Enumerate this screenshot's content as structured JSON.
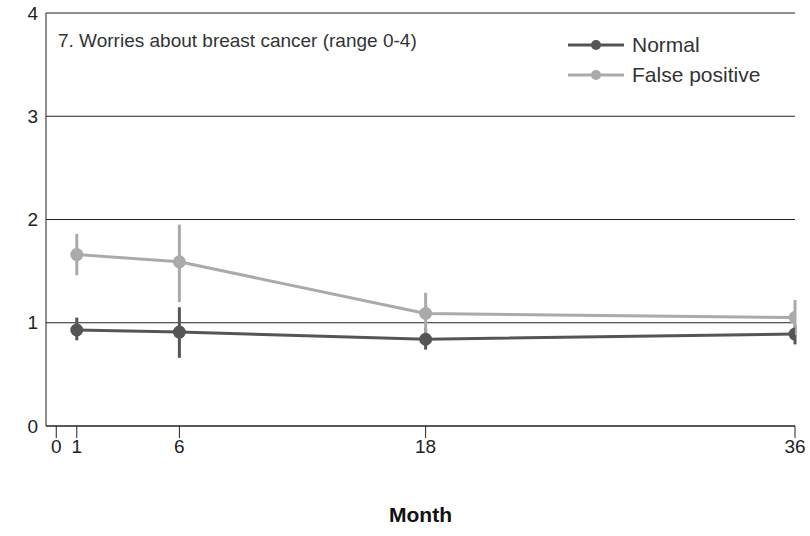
{
  "chart_data": {
    "type": "line",
    "title": "7. Worries about breast cancer (range 0-4)",
    "x_label": "Month",
    "x": [
      1,
      6,
      18,
      36
    ],
    "xlim": [
      -0.5,
      36
    ],
    "xticks": [
      0,
      1,
      6,
      18,
      36
    ],
    "ylim": [
      0,
      4
    ],
    "yticks": [
      0,
      1,
      2,
      3,
      4
    ],
    "grid": true,
    "legend": "upper right",
    "series": [
      {
        "name": "Normal",
        "color": "#555555",
        "marker": "circle",
        "values": [
          0.93,
          0.91,
          0.84,
          0.89
        ],
        "errors": [
          [
            0.1,
            0.12
          ],
          [
            0.25,
            0.24
          ],
          [
            0.1,
            0.11
          ],
          [
            0.1,
            0.09
          ]
        ]
      },
      {
        "name": "False positive",
        "color": "#aaaaaa",
        "marker": "circle",
        "values": [
          1.66,
          1.59,
          1.09,
          1.05
        ],
        "errors": [
          [
            0.2,
            0.2
          ],
          [
            0.39,
            0.36
          ],
          [
            0.19,
            0.2
          ],
          [
            0.17,
            0.17
          ]
        ]
      }
    ]
  }
}
